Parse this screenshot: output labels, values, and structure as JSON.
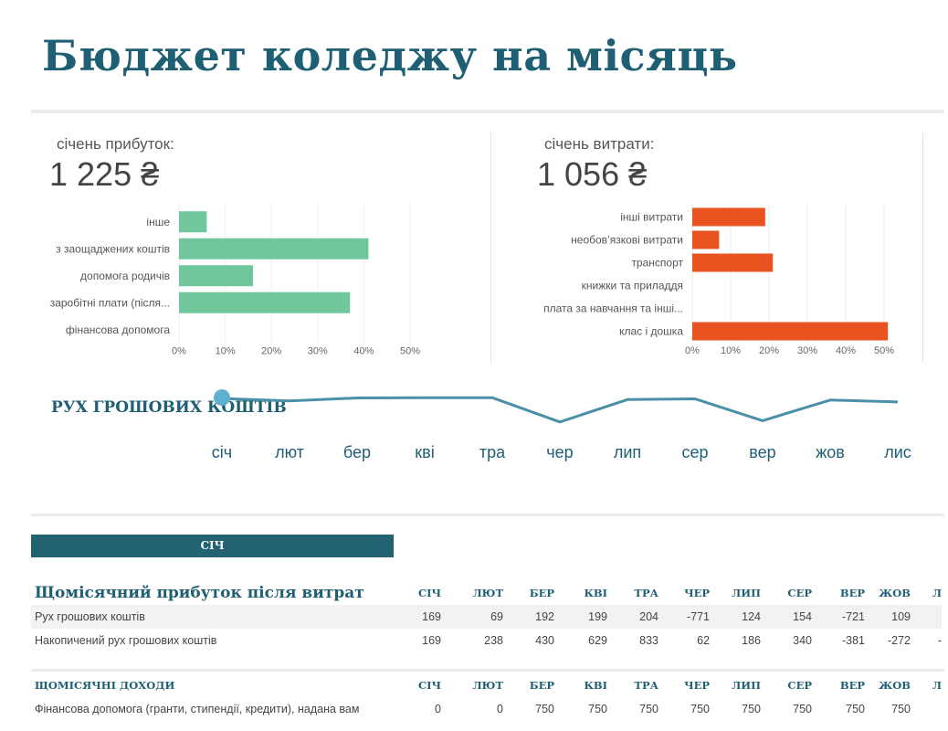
{
  "title": "Бюджет коледжу на місяць",
  "income": {
    "label": "січень прибуток:",
    "total": "1 225 ₴"
  },
  "expenses": {
    "label": "січень витрати:",
    "total": "1 056 ₴"
  },
  "colors": {
    "income": "#6fc79b",
    "expense": "#e8531f",
    "accent": "#1f5f74",
    "line": "#4a90a8",
    "negative": "#e2501f"
  },
  "chart_data": [
    {
      "type": "bar",
      "orientation": "horizontal",
      "categories": [
        "інше",
        "з заощаджених коштів",
        "допомога родичів",
        "заробітні плати (після...",
        "фінансова допомога"
      ],
      "values": [
        6,
        41,
        16,
        37,
        0
      ],
      "unit": "%",
      "ticks": [
        "0%",
        "10%",
        "20%",
        "30%",
        "40%",
        "50%"
      ],
      "xlim": [
        0,
        50
      ]
    },
    {
      "type": "bar",
      "orientation": "horizontal",
      "categories": [
        "інші витрати",
        "необов’язкові витрати",
        "транспорт",
        "книжки та приладдя",
        "плата за навчання та інші...",
        "клас і дошка"
      ],
      "values": [
        19,
        7,
        21,
        0,
        0,
        51
      ],
      "unit": "%",
      "ticks": [
        "0%",
        "10%",
        "20%",
        "30%",
        "40%",
        "50%"
      ],
      "xlim": [
        0,
        50
      ]
    },
    {
      "type": "line",
      "title": "РУХ ГРОШОВИХ КОШТІВ",
      "categories": [
        "січ",
        "лют",
        "бер",
        "кві",
        "тра",
        "чер",
        "лип",
        "сер",
        "вер",
        "жов",
        "лис"
      ],
      "values": [
        169,
        69,
        192,
        199,
        204,
        -771,
        124,
        154,
        -721,
        109,
        30
      ],
      "highlight_index": 0
    }
  ],
  "month_band": "СІЧ",
  "months": [
    "СІЧ",
    "ЛЮТ",
    "БЕР",
    "КВІ",
    "ТРА",
    "ЧЕР",
    "ЛИП",
    "СЕР",
    "ВЕР",
    "ЖОВ",
    "Л"
  ],
  "summary": {
    "heading": "Щомісячний прибуток після витрат",
    "rows": [
      {
        "label": "Рух грошових коштів",
        "values": [
          "169",
          "69",
          "192",
          "199",
          "204",
          "-771",
          "124",
          "154",
          "-721",
          "109",
          ""
        ]
      },
      {
        "label": "Накопичений рух грошових коштів",
        "values": [
          "169",
          "238",
          "430",
          "629",
          "833",
          "62",
          "186",
          "340",
          "-381",
          "-272",
          "-"
        ]
      }
    ]
  },
  "income_table": {
    "heading": "ЩОМІСЯЧНІ ДОХОДИ",
    "rows": [
      {
        "label": "Фінансова допомога (гранти, стипендії, кредити), надана вам",
        "values": [
          "0",
          "0",
          "750",
          "750",
          "750",
          "750",
          "750",
          "750",
          "750",
          "750",
          ""
        ]
      }
    ]
  }
}
